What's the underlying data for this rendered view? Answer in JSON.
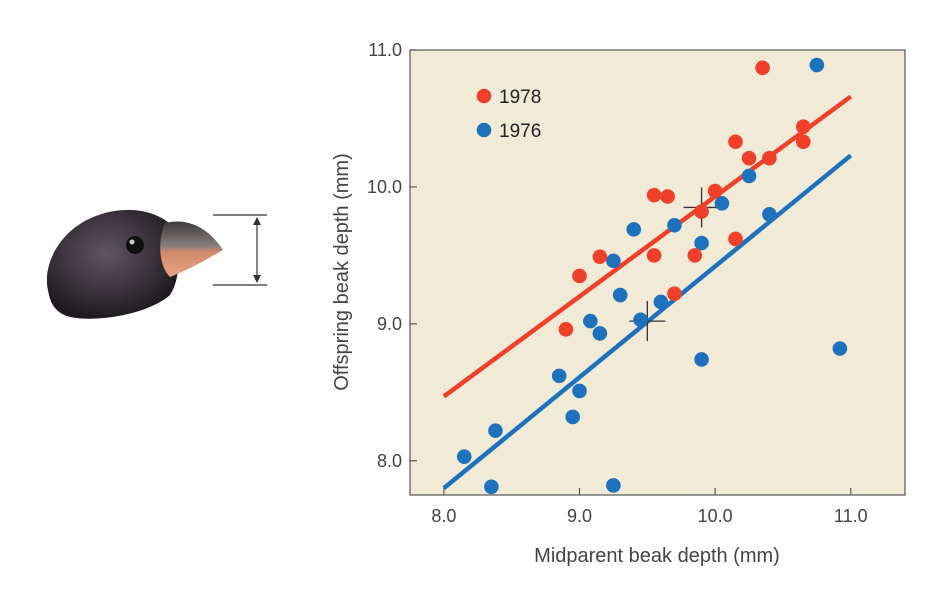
{
  "chart_data": {
    "type": "scatter",
    "title": "",
    "xlabel": "Midparent beak depth (mm)",
    "ylabel": "Offspring beak depth (mm)",
    "xlim": [
      7.75,
      11.4
    ],
    "ylim": [
      7.75,
      11.0
    ],
    "xticks": [
      8.0,
      9.0,
      10.0,
      11.0
    ],
    "yticks": [
      8.0,
      9.0,
      10.0,
      11.0
    ],
    "xtick_labels": [
      "8.0",
      "9.0",
      "10.0",
      "11.0"
    ],
    "ytick_labels": [
      "8.0",
      "9.0",
      "10.0",
      "11.0"
    ],
    "grid": false,
    "background_color": "#f1ead6",
    "legend_position": "top-left",
    "series": [
      {
        "name": "1978",
        "color": "#f0402a",
        "points": [
          [
            8.9,
            8.96
          ],
          [
            9.0,
            9.35
          ],
          [
            9.15,
            9.49
          ],
          [
            9.55,
            9.94
          ],
          [
            9.65,
            9.93
          ],
          [
            9.55,
            9.5
          ],
          [
            9.7,
            9.22
          ],
          [
            9.85,
            9.5
          ],
          [
            9.9,
            9.82
          ],
          [
            10.0,
            9.97
          ],
          [
            10.15,
            9.62
          ],
          [
            10.15,
            10.33
          ],
          [
            10.25,
            10.21
          ],
          [
            10.35,
            10.87
          ],
          [
            10.4,
            10.21
          ],
          [
            10.65,
            10.44
          ],
          [
            10.65,
            10.33
          ]
        ],
        "fit_line": [
          [
            8.0,
            8.47
          ],
          [
            11.0,
            10.66
          ]
        ],
        "mean_marker": [
          9.9,
          9.85
        ]
      },
      {
        "name": "1976",
        "color": "#1e72bd",
        "points": [
          [
            8.15,
            8.03
          ],
          [
            8.35,
            7.81
          ],
          [
            8.38,
            8.22
          ],
          [
            8.85,
            8.62
          ],
          [
            8.95,
            8.32
          ],
          [
            9.0,
            8.51
          ],
          [
            9.08,
            9.02
          ],
          [
            9.15,
            8.93
          ],
          [
            9.25,
            9.46
          ],
          [
            9.25,
            7.82
          ],
          [
            9.3,
            9.21
          ],
          [
            9.4,
            9.69
          ],
          [
            9.45,
            9.03
          ],
          [
            9.6,
            9.16
          ],
          [
            9.7,
            9.72
          ],
          [
            9.9,
            9.59
          ],
          [
            9.9,
            8.74
          ],
          [
            10.05,
            9.88
          ],
          [
            10.25,
            10.08
          ],
          [
            10.4,
            9.8
          ],
          [
            10.75,
            10.89
          ],
          [
            10.92,
            8.82
          ]
        ],
        "fit_line": [
          [
            8.0,
            7.8
          ],
          [
            11.0,
            10.23
          ]
        ],
        "mean_marker": [
          9.5,
          9.02
        ]
      }
    ]
  }
}
